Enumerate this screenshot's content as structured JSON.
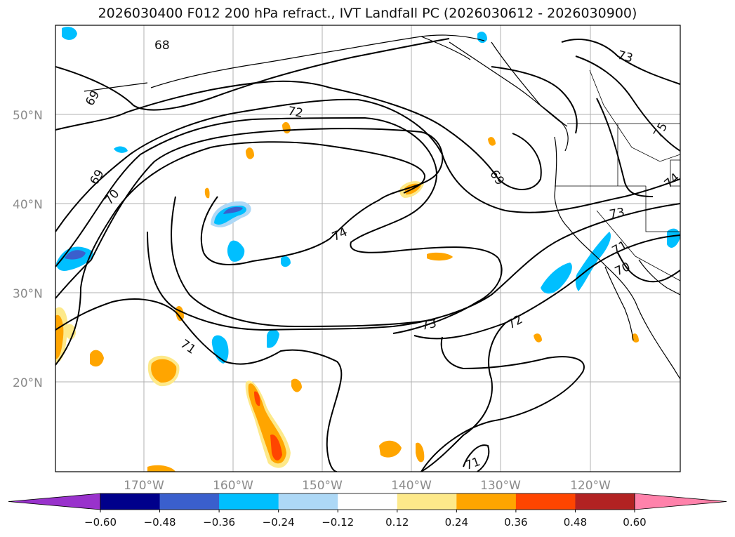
{
  "title": "2026030400 F012 200 hPa refract., IVT Landfall PC (2026030612 - 2026030900)",
  "map": {
    "lat_labels": [
      "50°N",
      "40°N",
      "30°N",
      "20°N"
    ],
    "lon_labels": [
      "170°W",
      "160°W",
      "150°W",
      "140°W",
      "130°W",
      "120°W"
    ],
    "contour_labels": [
      "68",
      "69",
      "69",
      "70",
      "72",
      "74",
      "73",
      "72",
      "71",
      "73",
      "69",
      "73",
      "75",
      "74",
      "71",
      "70",
      "71"
    ]
  },
  "colorbar": {
    "ticks": [
      "−0.60",
      "−0.48",
      "−0.36",
      "−0.24",
      "−0.12",
      "0.12",
      "0.24",
      "0.36",
      "0.48",
      "0.60"
    ],
    "colors": [
      "#9932cc",
      "#00008b",
      "#3a5fcd",
      "#00bfff",
      "#add8f6",
      "#ffffff",
      "#fde98a",
      "#ffa500",
      "#ff4500",
      "#b22222",
      "#ff82ab"
    ]
  }
}
